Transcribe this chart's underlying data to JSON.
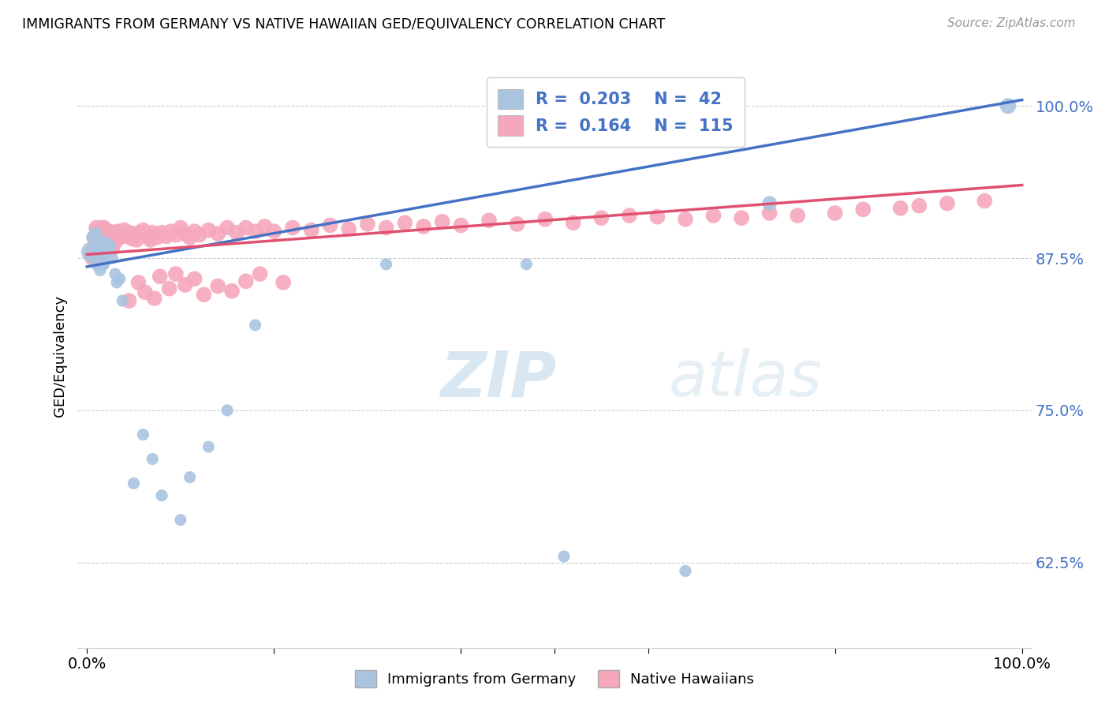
{
  "title": "IMMIGRANTS FROM GERMANY VS NATIVE HAWAIIAN GED/EQUIVALENCY CORRELATION CHART",
  "source": "Source: ZipAtlas.com",
  "ylabel": "GED/Equivalency",
  "xlim": [
    0.0,
    1.0
  ],
  "ylim": [
    0.555,
    1.035
  ],
  "blue_R": 0.203,
  "blue_N": 42,
  "pink_R": 0.164,
  "pink_N": 115,
  "blue_color": "#aac4e0",
  "pink_color": "#f5a8bc",
  "blue_line_color": "#4472c4",
  "pink_line_color": "#e05070",
  "legend_text_color": "#4472c4",
  "watermark_color": "#cce0f0",
  "blue_line_x0": 0.0,
  "blue_line_y0": 0.868,
  "blue_line_x1": 1.0,
  "blue_line_y1": 1.005,
  "pink_line_x0": 0.0,
  "pink_line_y0": 0.878,
  "pink_line_x1": 1.0,
  "pink_line_y1": 0.935,
  "blue_x": [
    0.005,
    0.007,
    0.009,
    0.01,
    0.011,
    0.011,
    0.012,
    0.012,
    0.013,
    0.014,
    0.014,
    0.015,
    0.015,
    0.016,
    0.016,
    0.017,
    0.017,
    0.018,
    0.02,
    0.022,
    0.022,
    0.025,
    0.027,
    0.03,
    0.032,
    0.035,
    0.038,
    0.05,
    0.06,
    0.07,
    0.08,
    0.1,
    0.11,
    0.13,
    0.15,
    0.18,
    0.32,
    0.47,
    0.51,
    0.64,
    0.73,
    0.985
  ],
  "blue_y": [
    0.88,
    0.892,
    0.895,
    0.878,
    0.885,
    0.87,
    0.89,
    0.875,
    0.88,
    0.875,
    0.865,
    0.885,
    0.875,
    0.885,
    0.88,
    0.875,
    0.87,
    0.87,
    0.888,
    0.885,
    0.88,
    0.885,
    0.875,
    0.862,
    0.855,
    0.858,
    0.84,
    0.69,
    0.73,
    0.71,
    0.68,
    0.66,
    0.695,
    0.72,
    0.75,
    0.82,
    0.87,
    0.87,
    0.63,
    0.618,
    0.92,
    1.0
  ],
  "blue_sizes": [
    600,
    300,
    250,
    350,
    200,
    250,
    200,
    200,
    200,
    200,
    200,
    200,
    200,
    200,
    200,
    200,
    200,
    200,
    200,
    200,
    200,
    200,
    200,
    200,
    200,
    200,
    200,
    200,
    200,
    200,
    200,
    200,
    200,
    200,
    200,
    200,
    200,
    200,
    200,
    200,
    300,
    350
  ],
  "pink_x": [
    0.005,
    0.006,
    0.008,
    0.009,
    0.01,
    0.01,
    0.011,
    0.011,
    0.012,
    0.012,
    0.013,
    0.013,
    0.014,
    0.014,
    0.015,
    0.015,
    0.016,
    0.016,
    0.017,
    0.017,
    0.018,
    0.018,
    0.019,
    0.019,
    0.02,
    0.02,
    0.021,
    0.022,
    0.022,
    0.023,
    0.024,
    0.025,
    0.025,
    0.026,
    0.027,
    0.027,
    0.028,
    0.03,
    0.03,
    0.031,
    0.033,
    0.035,
    0.037,
    0.04,
    0.042,
    0.045,
    0.048,
    0.05,
    0.053,
    0.056,
    0.06,
    0.065,
    0.068,
    0.07,
    0.075,
    0.08,
    0.085,
    0.09,
    0.095,
    0.1,
    0.105,
    0.11,
    0.115,
    0.12,
    0.13,
    0.14,
    0.15,
    0.16,
    0.17,
    0.18,
    0.19,
    0.2,
    0.22,
    0.24,
    0.26,
    0.28,
    0.3,
    0.32,
    0.34,
    0.36,
    0.38,
    0.4,
    0.43,
    0.46,
    0.49,
    0.52,
    0.55,
    0.58,
    0.61,
    0.64,
    0.67,
    0.7,
    0.73,
    0.76,
    0.8,
    0.83,
    0.87,
    0.89,
    0.92,
    0.96,
    0.045,
    0.055,
    0.062,
    0.072,
    0.078,
    0.088,
    0.095,
    0.105,
    0.115,
    0.125,
    0.14,
    0.155,
    0.17,
    0.185,
    0.21
  ],
  "pink_y": [
    0.88,
    0.875,
    0.892,
    0.885,
    0.9,
    0.89,
    0.895,
    0.888,
    0.893,
    0.885,
    0.898,
    0.888,
    0.893,
    0.882,
    0.895,
    0.888,
    0.9,
    0.89,
    0.895,
    0.885,
    0.9,
    0.892,
    0.895,
    0.887,
    0.898,
    0.89,
    0.894,
    0.895,
    0.886,
    0.893,
    0.897,
    0.892,
    0.884,
    0.895,
    0.89,
    0.883,
    0.893,
    0.896,
    0.888,
    0.894,
    0.897,
    0.892,
    0.895,
    0.898,
    0.893,
    0.896,
    0.891,
    0.895,
    0.89,
    0.896,
    0.898,
    0.893,
    0.89,
    0.896,
    0.892,
    0.896,
    0.893,
    0.897,
    0.894,
    0.9,
    0.895,
    0.892,
    0.897,
    0.894,
    0.898,
    0.895,
    0.9,
    0.896,
    0.9,
    0.897,
    0.901,
    0.897,
    0.9,
    0.898,
    0.902,
    0.899,
    0.903,
    0.9,
    0.904,
    0.901,
    0.905,
    0.902,
    0.906,
    0.903,
    0.907,
    0.904,
    0.908,
    0.91,
    0.909,
    0.907,
    0.91,
    0.908,
    0.912,
    0.91,
    0.912,
    0.915,
    0.916,
    0.918,
    0.92,
    0.922,
    0.84,
    0.855,
    0.847,
    0.842,
    0.86,
    0.85,
    0.862,
    0.853,
    0.858,
    0.845,
    0.852,
    0.848,
    0.856,
    0.862,
    0.855
  ]
}
